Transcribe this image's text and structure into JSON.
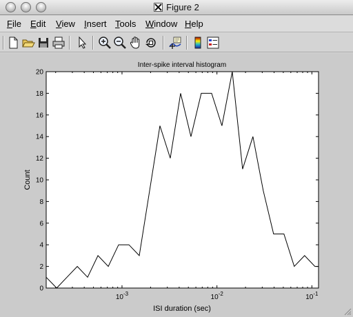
{
  "window": {
    "title": "Figure 2"
  },
  "menubar": {
    "items": [
      {
        "label": "File",
        "ul": "F",
        "rest": "ile"
      },
      {
        "label": "Edit",
        "ul": "E",
        "rest": "dit"
      },
      {
        "label": "View",
        "ul": "V",
        "rest": "iew"
      },
      {
        "label": "Insert",
        "ul": "I",
        "rest": "nsert"
      },
      {
        "label": "Tools",
        "ul": "T",
        "rest": "ools"
      },
      {
        "label": "Window",
        "ul": "W",
        "rest": "indow"
      },
      {
        "label": "Help",
        "ul": "H",
        "rest": "elp"
      }
    ]
  },
  "toolbar": {
    "buttons": [
      {
        "name": "new-figure-button",
        "icon": "new-document-icon"
      },
      {
        "name": "open-file-button",
        "icon": "open-folder-icon"
      },
      {
        "name": "save-button",
        "icon": "save-disk-icon"
      },
      {
        "name": "print-button",
        "icon": "printer-icon"
      },
      {
        "name": "edit-plot-button",
        "icon": "arrow-pointer-icon"
      },
      {
        "name": "zoom-in-button",
        "icon": "zoom-in-icon"
      },
      {
        "name": "zoom-out-button",
        "icon": "zoom-out-icon"
      },
      {
        "name": "pan-button",
        "icon": "hand-icon"
      },
      {
        "name": "rotate-3d-button",
        "icon": "rotate-3d-icon"
      },
      {
        "name": "data-cursor-button",
        "icon": "data-cursor-icon"
      },
      {
        "name": "colorbar-button",
        "icon": "colorbar-icon"
      },
      {
        "name": "legend-button",
        "icon": "legend-icon"
      }
    ]
  },
  "chart_data": {
    "type": "line",
    "title": "Inter-spike interval histogram",
    "xlabel": "ISI duration (sec)",
    "ylabel": "Count",
    "xscale": "log",
    "xlim": [
      0.000159,
      0.1175
    ],
    "ylim": [
      0,
      20
    ],
    "yticks": [
      0,
      2,
      4,
      6,
      8,
      10,
      12,
      14,
      16,
      18,
      20
    ],
    "xticks": [
      {
        "base": "10",
        "exp": "-3",
        "value": 0.001
      },
      {
        "base": "10",
        "exp": "-2",
        "value": 0.01
      },
      {
        "base": "10",
        "exp": "-1",
        "value": 0.1
      }
    ],
    "grid": false,
    "series": [
      {
        "x": [
          0.000159,
          0.000205,
          0.000263,
          0.000338,
          0.000434,
          0.000558,
          0.000717,
          0.000921,
          0.001183,
          0.00152,
          0.001953,
          0.002509,
          0.003224,
          0.004142,
          0.005322,
          0.006837,
          0.008784,
          0.011286,
          0.0145,
          0.01863,
          0.023936,
          0.030752,
          0.03951,
          0.050762,
          0.065218,
          0.083791,
          0.10765,
          0.1175
        ],
        "y": [
          1,
          0,
          1,
          2,
          1,
          3,
          2,
          4,
          4,
          3,
          9,
          15,
          12,
          18,
          14,
          18,
          18,
          15,
          20,
          11,
          14,
          9,
          5,
          5,
          2,
          3,
          2,
          2
        ]
      }
    ],
    "line_color": "#000000"
  }
}
